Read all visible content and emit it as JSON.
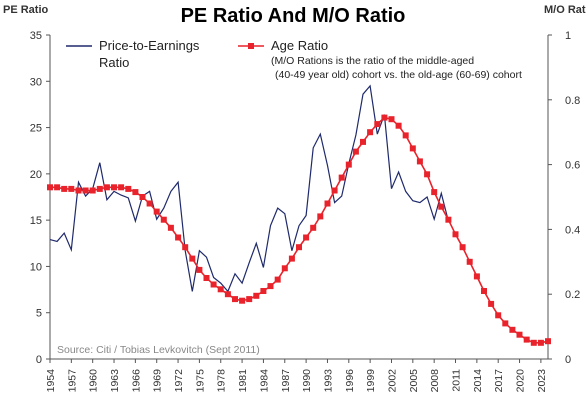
{
  "chart_data": {
    "type": "line",
    "title": "PE Ratio And M/O Ratio",
    "y_left_label": "PE Ratio",
    "y_right_label": "M/O Rat",
    "y_left_ticks": [
      0,
      5,
      10,
      15,
      20,
      25,
      30,
      35
    ],
    "y_left_range": [
      0,
      35
    ],
    "y_right_ticks": [
      "0",
      "0.2",
      "0.4",
      "0.6",
      "0.8",
      "1"
    ],
    "y_right_range": [
      0,
      1
    ],
    "x_ticks": [
      "1954",
      "1957",
      "1960",
      "1963",
      "1966",
      "1969",
      "1972",
      "1975",
      "1978",
      "1981",
      "1984",
      "1987",
      "1990",
      "1993",
      "1996",
      "1999",
      "2002",
      "2005",
      "2008",
      "2011",
      "2014",
      "2017",
      "2020",
      "2023"
    ],
    "x_range": [
      1954,
      2024
    ],
    "source": "Source: Citi / Tobias Levkovitch (Sept 2011)",
    "series": [
      {
        "name": "Price-to-Earnings\nRatio",
        "axis": "left",
        "color": "#1f2a6b",
        "style": "line",
        "x": [
          1954,
          1955,
          1956,
          1957,
          1958,
          1959,
          1960,
          1961,
          1962,
          1963,
          1964,
          1965,
          1966,
          1967,
          1968,
          1969,
          1970,
          1971,
          1972,
          1973,
          1974,
          1975,
          1976,
          1977,
          1978,
          1979,
          1980,
          1981,
          1982,
          1983,
          1984,
          1985,
          1986,
          1987,
          1988,
          1989,
          1990,
          1991,
          1992,
          1993,
          1994,
          1995,
          1996,
          1997,
          1998,
          1999,
          2000,
          2001,
          2002,
          2003,
          2004,
          2005,
          2006,
          2007,
          2008,
          2009,
          2010
        ],
        "y": [
          12.9,
          12.7,
          13.6,
          11.8,
          19.1,
          17.6,
          18.4,
          21.2,
          17.2,
          18.1,
          17.7,
          17.4,
          14.9,
          17.6,
          18.1,
          15.1,
          16.3,
          18.1,
          19.1,
          11.7,
          7.3,
          11.7,
          11.0,
          8.8,
          8.2,
          7.3,
          9.2,
          8.2,
          10.4,
          12.5,
          9.9,
          14.4,
          16.3,
          15.7,
          11.7,
          14.4,
          15.5,
          22.8,
          24.3,
          20.9,
          16.9,
          17.6,
          21.1,
          24.2,
          28.6,
          29.5,
          24.3,
          26.4,
          18.4,
          20.2,
          18.1,
          17.1,
          16.9,
          17.5,
          15.1,
          17.9,
          14.9
        ]
      },
      {
        "name": "Age Ratio",
        "axis": "right",
        "color": "#e8232b",
        "style": "line-markers",
        "x": [
          1954,
          1955,
          1956,
          1957,
          1958,
          1959,
          1960,
          1961,
          1962,
          1963,
          1964,
          1965,
          1966,
          1967,
          1968,
          1969,
          1970,
          1971,
          1972,
          1973,
          1974,
          1975,
          1976,
          1977,
          1978,
          1979,
          1980,
          1981,
          1982,
          1983,
          1984,
          1985,
          1986,
          1987,
          1988,
          1989,
          1990,
          1991,
          1992,
          1993,
          1994,
          1995,
          1996,
          1997,
          1998,
          1999,
          2000,
          2001,
          2002,
          2003,
          2004,
          2005,
          2006,
          2007,
          2008,
          2009,
          2010,
          2011,
          2012,
          2013,
          2014,
          2015,
          2016,
          2017,
          2018,
          2019,
          2020,
          2021,
          2022,
          2023,
          2024
        ],
        "y": [
          0.53,
          0.53,
          0.525,
          0.525,
          0.52,
          0.52,
          0.52,
          0.525,
          0.53,
          0.53,
          0.53,
          0.525,
          0.515,
          0.5,
          0.48,
          0.455,
          0.43,
          0.405,
          0.375,
          0.345,
          0.31,
          0.275,
          0.25,
          0.23,
          0.215,
          0.2,
          0.185,
          0.18,
          0.185,
          0.195,
          0.21,
          0.225,
          0.245,
          0.28,
          0.31,
          0.345,
          0.375,
          0.405,
          0.44,
          0.48,
          0.52,
          0.56,
          0.6,
          0.64,
          0.67,
          0.7,
          0.725,
          0.745,
          0.74,
          0.72,
          0.69,
          0.65,
          0.61,
          0.57,
          0.515,
          0.47,
          0.43,
          0.385,
          0.345,
          0.3,
          0.255,
          0.21,
          0.17,
          0.135,
          0.11,
          0.09,
          0.075,
          0.06,
          0.05,
          0.05,
          0.055
        ]
      }
    ],
    "legend": {
      "series1_label": "Price-to-Earnings",
      "series1_label2": "Ratio",
      "series2_label": "Age Ratio",
      "note_line1": "(M/O Rations is the ratio of the middle-aged",
      "note_line2": "(40-49 year old) cohort vs. the old-age (60-69) cohort"
    }
  }
}
